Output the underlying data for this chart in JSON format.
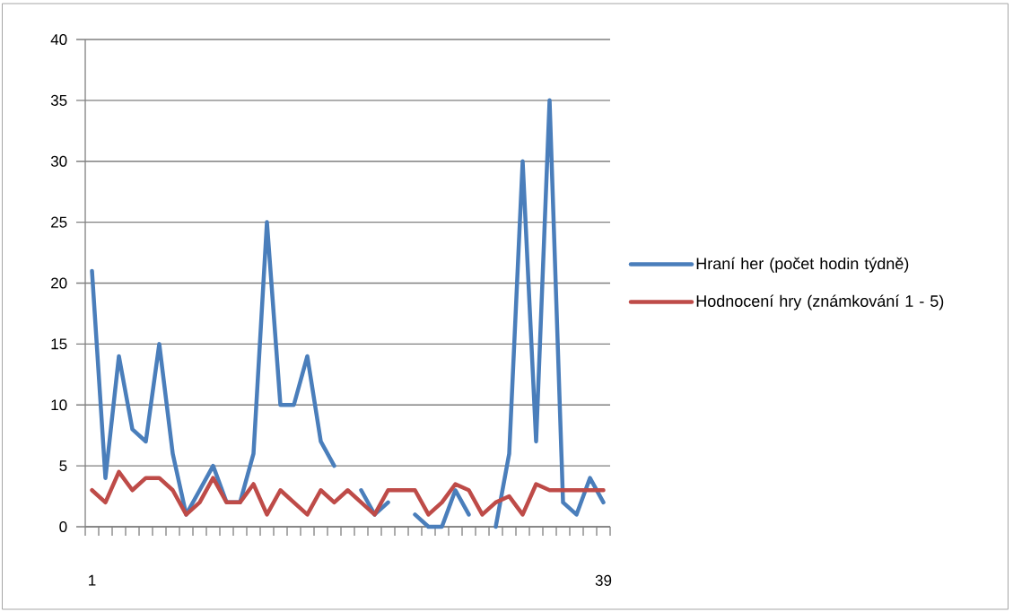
{
  "chart_data": {
    "type": "line",
    "categories": [
      "1",
      null,
      null,
      null,
      null,
      null,
      null,
      null,
      null,
      null,
      null,
      null,
      null,
      null,
      null,
      null,
      null,
      null,
      null,
      null,
      null,
      null,
      null,
      null,
      null,
      null,
      null,
      null,
      null,
      null,
      null,
      null,
      null,
      null,
      null,
      null,
      null,
      null,
      "39"
    ],
    "ylim": [
      0,
      40
    ],
    "yticks": [
      0,
      5,
      10,
      15,
      20,
      25,
      30,
      35,
      40
    ],
    "grid": "y",
    "legend": "right",
    "marker": "none",
    "series": [
      {
        "name": "Hraní her (počet hodin týdně)",
        "color": "#4a7ebb",
        "values": [
          21,
          4,
          14,
          8,
          7,
          15,
          6,
          1,
          3,
          5,
          2,
          2,
          6,
          25,
          10,
          10,
          14,
          7,
          5,
          null,
          3,
          1,
          2,
          null,
          1,
          0,
          0,
          3,
          1,
          null,
          0,
          6,
          30,
          7,
          35,
          2,
          1,
          4,
          2
        ]
      },
      {
        "name": "Hodnocení hry (známkování 1 - 5)",
        "color": "#be4b48",
        "values": [
          3,
          2,
          4.5,
          3,
          4,
          4,
          3,
          1,
          2,
          4,
          2,
          2,
          3.5,
          1,
          3,
          2,
          1,
          3,
          2,
          3,
          2,
          1,
          3,
          3,
          3,
          1,
          2,
          3.5,
          3,
          1,
          2,
          2.5,
          1,
          3.5,
          3,
          3,
          3,
          3,
          3
        ]
      }
    ]
  }
}
